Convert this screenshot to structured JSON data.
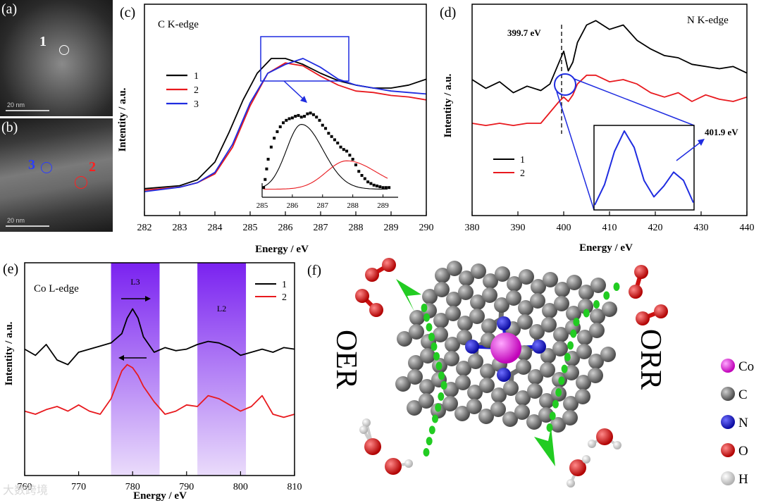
{
  "panel_a": {
    "label": "(a)",
    "marker": "1",
    "scale": "20 nm"
  },
  "panel_b": {
    "label": "(b)",
    "marker_blue": "3",
    "marker_red": "2",
    "scale": "20 nm"
  },
  "colors": {
    "black": "#000000",
    "red": "#e8191e",
    "blue": "#1f2ce0",
    "green": "#22cc22",
    "purple": "#7a22f0"
  },
  "chart_data": [
    {
      "id": "c",
      "type": "line",
      "panel_label": "(c)",
      "title": "C K-edge",
      "xlabel": "Energy / eV",
      "ylabel": "Intentity / a.u.",
      "xlim": [
        282,
        290
      ],
      "ylim": [
        0,
        1
      ],
      "xticks": [
        "282",
        "283",
        "284",
        "285",
        "286",
        "287",
        "288",
        "289",
        "290"
      ],
      "series": [
        {
          "name": "1",
          "color": "#000000",
          "x": [
            282,
            283,
            283.5,
            284,
            284.4,
            284.8,
            285.2,
            285.6,
            286,
            286.5,
            287,
            287.5,
            288,
            288.5,
            289,
            289.5,
            290
          ],
          "y": [
            0.02,
            0.04,
            0.08,
            0.2,
            0.4,
            0.62,
            0.8,
            0.9,
            0.9,
            0.86,
            0.8,
            0.75,
            0.72,
            0.7,
            0.7,
            0.72,
            0.76
          ]
        },
        {
          "name": "2",
          "color": "#e8191e",
          "x": [
            282,
            283,
            283.5,
            284,
            284.5,
            285,
            285.5,
            286,
            286.5,
            287,
            287.5,
            288,
            288.5,
            289,
            289.5,
            290
          ],
          "y": [
            0.01,
            0.03,
            0.06,
            0.12,
            0.3,
            0.58,
            0.8,
            0.87,
            0.85,
            0.78,
            0.72,
            0.68,
            0.67,
            0.65,
            0.64,
            0.62
          ]
        },
        {
          "name": "3",
          "color": "#1f2ce0",
          "x": [
            282,
            283,
            283.5,
            284,
            284.5,
            285,
            285.5,
            286,
            286.5,
            287,
            287.5,
            288,
            288.5,
            289,
            289.5,
            290
          ],
          "y": [
            0.0,
            0.03,
            0.06,
            0.13,
            0.32,
            0.6,
            0.8,
            0.86,
            0.9,
            0.84,
            0.76,
            0.72,
            0.7,
            0.68,
            0.67,
            0.66
          ]
        }
      ],
      "inset": {
        "xlim": [
          285,
          289.5
        ],
        "xticks": [
          "285",
          "286",
          "287",
          "288",
          "289"
        ],
        "dots": {
          "x": [
            285.05,
            285.1,
            285.15,
            285.2,
            285.3,
            285.4,
            285.5,
            285.6,
            285.7,
            285.8,
            285.9,
            286.0,
            286.1,
            286.2,
            286.3,
            286.4,
            286.5,
            286.6,
            286.7,
            286.8,
            286.9,
            287.0,
            287.1,
            287.2,
            287.3,
            287.4,
            287.5,
            287.6,
            287.7,
            287.8,
            287.9,
            288.0,
            288.1,
            288.2,
            288.3,
            288.4,
            288.5,
            288.6,
            288.7,
            288.8,
            288.9,
            289.0,
            289.1,
            289.2
          ],
          "y": [
            0.05,
            0.15,
            0.28,
            0.4,
            0.55,
            0.66,
            0.74,
            0.8,
            0.85,
            0.88,
            0.9,
            0.91,
            0.93,
            0.94,
            0.92,
            0.93,
            0.96,
            0.97,
            0.95,
            0.92,
            0.88,
            0.82,
            0.78,
            0.72,
            0.68,
            0.64,
            0.6,
            0.55,
            0.52,
            0.5,
            0.45,
            0.4,
            0.33,
            0.25,
            0.2,
            0.16,
            0.12,
            0.1,
            0.08,
            0.07,
            0.06,
            0.05,
            0.05,
            0.05
          ]
        },
        "peak1": {
          "center": 286.3,
          "amplitude": 0.8,
          "color": "#000000"
        },
        "peak2": {
          "center": 287.8,
          "amplitude": 0.35,
          "color": "#e8191e"
        }
      }
    },
    {
      "id": "d",
      "type": "line",
      "panel_label": "(d)",
      "title": "N K-edge",
      "xlabel": "Energy / eV",
      "ylabel": "Intentity / a.u.",
      "xlim": [
        380,
        440
      ],
      "xticks": [
        "380",
        "390",
        "400",
        "410",
        "420",
        "430",
        "440"
      ],
      "annotations": [
        "399.7 eV",
        "401.9 eV"
      ],
      "series": [
        {
          "name": "1",
          "color": "#000000",
          "x": [
            380,
            383,
            386,
            389,
            392,
            395,
            397,
            399,
            400,
            401,
            402,
            403,
            405,
            407,
            410,
            413,
            416,
            419,
            422,
            425,
            428,
            431,
            434,
            437,
            440
          ],
          "y": [
            0.7,
            0.66,
            0.69,
            0.64,
            0.67,
            0.65,
            0.68,
            0.78,
            0.83,
            0.74,
            0.78,
            0.87,
            0.95,
            0.97,
            0.93,
            0.95,
            0.88,
            0.84,
            0.81,
            0.8,
            0.77,
            0.76,
            0.75,
            0.76,
            0.73
          ]
        },
        {
          "name": "2",
          "color": "#e8191e",
          "x": [
            380,
            383,
            386,
            389,
            392,
            395,
            397,
            399,
            400,
            401,
            402,
            403,
            405,
            407,
            410,
            413,
            416,
            419,
            422,
            425,
            428,
            431,
            434,
            437,
            440
          ],
          "y": [
            0.5,
            0.49,
            0.5,
            0.49,
            0.5,
            0.5,
            0.55,
            0.6,
            0.62,
            0.6,
            0.63,
            0.68,
            0.72,
            0.72,
            0.69,
            0.7,
            0.68,
            0.64,
            0.62,
            0.64,
            0.6,
            0.63,
            0.61,
            0.6,
            0.62
          ]
        }
      ],
      "inset_values": [
        0.05,
        0.3,
        0.7,
        0.95,
        0.75,
        0.35,
        0.15,
        0.28,
        0.45,
        0.35,
        0.08
      ]
    },
    {
      "id": "e",
      "type": "line",
      "panel_label": "(e)",
      "title": "Co L-edge",
      "xlabel": "Energy / eV",
      "ylabel": "Intentity / a.u.",
      "xlim": [
        760,
        810
      ],
      "xticks": [
        "760",
        "770",
        "780",
        "790",
        "800",
        "810"
      ],
      "bands": [
        {
          "label": "L3",
          "from": 776,
          "to": 785
        },
        {
          "label": "L2",
          "from": 792,
          "to": 801
        }
      ],
      "series": [
        {
          "name": "1",
          "color": "#000000",
          "x": [
            760,
            762,
            764,
            766,
            768,
            770,
            772,
            774,
            776,
            778,
            779,
            780,
            781,
            782,
            784,
            786,
            788,
            790,
            792,
            794,
            796,
            798,
            800,
            802,
            804,
            806,
            808,
            810
          ],
          "y": [
            0.62,
            0.58,
            0.65,
            0.55,
            0.52,
            0.6,
            0.62,
            0.64,
            0.66,
            0.72,
            0.82,
            0.88,
            0.82,
            0.7,
            0.6,
            0.63,
            0.61,
            0.62,
            0.65,
            0.67,
            0.66,
            0.63,
            0.58,
            0.6,
            0.62,
            0.6,
            0.63,
            0.62
          ]
        },
        {
          "name": "2",
          "color": "#e8191e",
          "x": [
            760,
            762,
            764,
            766,
            768,
            770,
            772,
            774,
            776,
            778,
            779,
            780,
            781,
            782,
            784,
            786,
            788,
            790,
            792,
            794,
            796,
            798,
            800,
            802,
            804,
            806,
            808,
            810
          ],
          "y": [
            0.22,
            0.2,
            0.23,
            0.25,
            0.22,
            0.26,
            0.22,
            0.2,
            0.3,
            0.48,
            0.52,
            0.5,
            0.45,
            0.38,
            0.28,
            0.2,
            0.22,
            0.26,
            0.25,
            0.32,
            0.3,
            0.26,
            0.22,
            0.25,
            0.32,
            0.2,
            0.18,
            0.2
          ]
        }
      ]
    }
  ],
  "panel_f": {
    "label": "(f)",
    "left_text": "OER",
    "right_text": "ORR",
    "legend": [
      {
        "label": "Co",
        "color": "#e01ad8"
      },
      {
        "label": "C",
        "color": "#555555"
      },
      {
        "label": "N",
        "color": "#1a1ad0"
      },
      {
        "label": "O",
        "color": "#e01010"
      },
      {
        "label": "H",
        "color": "#dddddd"
      }
    ]
  },
  "watermark": "大数跨境"
}
